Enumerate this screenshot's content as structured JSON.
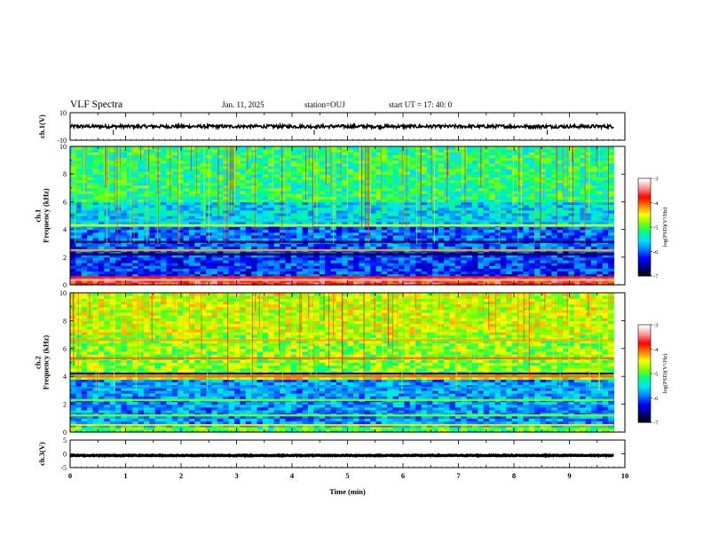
{
  "header": {
    "title": "VLF Spectra",
    "date": "Jan. 11, 2025",
    "station": "station=OUJ",
    "start": "start UT =  17: 40: 0"
  },
  "colors": {
    "frame": "#000000",
    "colormap": [
      "#000000",
      "#00008b",
      "#0000ff",
      "#0080ff",
      "#00e0ff",
      "#00ff80",
      "#80ff00",
      "#ffff00",
      "#ff8000",
      "#ff0000",
      "#ff9090",
      "#ffffff"
    ]
  },
  "chart_data": [
    {
      "type": "line",
      "panel": "ch1-waveform",
      "ylabel": "ch.1(V)",
      "ylim": [
        -10,
        10
      ],
      "yticks": [
        "10",
        "-10"
      ],
      "xlim": [
        0,
        10
      ],
      "series": [
        {
          "level": 0,
          "noise_amplitude": 1.2
        }
      ]
    },
    {
      "type": "heatmap",
      "panel": "ch1-spectrogram",
      "ylabel": "ch.1\nFrequency (kHz)",
      "ylim": [
        0,
        10
      ],
      "yticks": [
        "0",
        "2",
        "4",
        "6",
        "8",
        "10"
      ],
      "xlim": [
        0,
        10
      ],
      "x_data_end": 9.8,
      "colorbar": {
        "label": "log(PSD)(V²/Hz)",
        "range": [
          -7,
          -3
        ],
        "ticks": [
          "-3",
          "-4",
          "-5",
          "-6",
          "-7"
        ]
      }
    },
    {
      "type": "heatmap",
      "panel": "ch2-spectrogram",
      "ylabel": "ch.2\nFrequency (kHz)",
      "ylim": [
        0,
        10
      ],
      "yticks": [
        "0",
        "2",
        "4",
        "6",
        "8",
        "10"
      ],
      "xlim": [
        0,
        10
      ],
      "x_data_end": 9.8,
      "colorbar": {
        "label": "log(PSD)(V²/Hz)",
        "range": [
          -7,
          -3
        ],
        "ticks": [
          "-3",
          "-4",
          "-5",
          "-6",
          "-7"
        ]
      }
    },
    {
      "type": "line",
      "panel": "ch3-waveform",
      "ylabel": "ch.3(V)",
      "ylim": [
        -5,
        5
      ],
      "yticks": [
        "5",
        "0",
        "-5"
      ],
      "xlim": [
        0,
        10
      ],
      "series": [
        {
          "level": -0.6,
          "noise_amplitude": 0.15
        }
      ]
    }
  ],
  "xaxis": {
    "label": "Time (min)",
    "ticks": [
      "0",
      "1",
      "2",
      "3",
      "4",
      "5",
      "6",
      "7",
      "8",
      "9",
      "10"
    ]
  }
}
